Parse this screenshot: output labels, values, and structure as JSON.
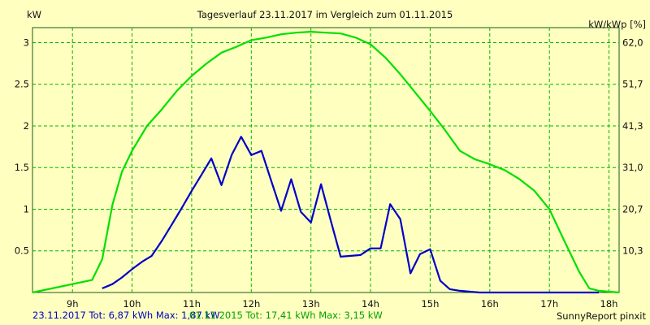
{
  "chart_data": {
    "type": "line",
    "title": "Tagesverlauf 23.11.2017 im Vergleich zum 01.11.2015",
    "ylabel_left": "kW",
    "ylabel_right": "kW/kWp [%]",
    "xlim": [
      8.33,
      18.17
    ],
    "ylim": [
      0,
      3.18
    ],
    "grid": true,
    "x_ticks": [
      {
        "x": 9,
        "label": "9h"
      },
      {
        "x": 10,
        "label": "10h"
      },
      {
        "x": 11,
        "label": "11h"
      },
      {
        "x": 12,
        "label": "12h"
      },
      {
        "x": 13,
        "label": "13h"
      },
      {
        "x": 14,
        "label": "14h"
      },
      {
        "x": 15,
        "label": "15h"
      },
      {
        "x": 16,
        "label": "16h"
      },
      {
        "x": 17,
        "label": "17h"
      },
      {
        "x": 18,
        "label": "18h"
      }
    ],
    "y_ticks_left": [
      {
        "v": 0.5,
        "label": "0.5"
      },
      {
        "v": 1,
        "label": "1"
      },
      {
        "v": 1.5,
        "label": "1.5"
      },
      {
        "v": 2,
        "label": "2"
      },
      {
        "v": 2.5,
        "label": "2.5"
      },
      {
        "v": 3,
        "label": "3"
      }
    ],
    "y_ticks_right": [
      {
        "v": 0.5,
        "label": "10,3"
      },
      {
        "v": 1,
        "label": "20,7"
      },
      {
        "v": 1.5,
        "label": "31,0"
      },
      {
        "v": 2,
        "label": "41,3"
      },
      {
        "v": 2.5,
        "label": "51,7"
      },
      {
        "v": 3,
        "label": "62,0"
      }
    ],
    "series": [
      {
        "name": "01.11.2015",
        "color": "#00e000",
        "x": [
          8.33,
          9.33,
          9.5,
          9.67,
          9.83,
          10.0,
          10.25,
          10.5,
          10.75,
          11.0,
          11.25,
          11.5,
          11.75,
          12.0,
          12.25,
          12.5,
          12.75,
          13.0,
          13.25,
          13.5,
          13.75,
          14.0,
          14.25,
          14.5,
          14.75,
          15.0,
          15.25,
          15.5,
          15.75,
          16.0,
          16.25,
          16.5,
          16.75,
          17.0,
          17.25,
          17.5,
          17.67,
          17.83,
          18.17
        ],
        "values": [
          0.0,
          0.15,
          0.4,
          1.05,
          1.45,
          1.7,
          2.0,
          2.2,
          2.42,
          2.6,
          2.75,
          2.88,
          2.95,
          3.03,
          3.06,
          3.1,
          3.12,
          3.13,
          3.12,
          3.11,
          3.06,
          2.98,
          2.82,
          2.62,
          2.4,
          2.18,
          1.95,
          1.7,
          1.6,
          1.54,
          1.47,
          1.36,
          1.22,
          1.0,
          0.62,
          0.25,
          0.05,
          0.02,
          0.0
        ]
      },
      {
        "name": "23.11.2017",
        "color": "#0000c8",
        "x": [
          9.5,
          9.67,
          9.83,
          10.0,
          10.17,
          10.33,
          10.5,
          10.67,
          10.83,
          11.0,
          11.17,
          11.33,
          11.5,
          11.67,
          11.83,
          12.0,
          12.17,
          12.33,
          12.5,
          12.67,
          12.83,
          13.0,
          13.17,
          13.33,
          13.5,
          13.67,
          13.83,
          14.0,
          14.17,
          14.33,
          14.5,
          14.67,
          14.83,
          15.0,
          15.17,
          15.33,
          15.5,
          15.67,
          15.83,
          16.0,
          16.17,
          16.33,
          16.5,
          16.67,
          16.83,
          17.0,
          17.17,
          17.33,
          17.5,
          17.67,
          17.83
        ],
        "values": [
          0.05,
          0.1,
          0.18,
          0.28,
          0.37,
          0.44,
          0.62,
          0.82,
          1.01,
          1.22,
          1.42,
          1.61,
          1.29,
          1.65,
          1.87,
          1.65,
          1.7,
          1.35,
          0.98,
          1.36,
          0.97,
          0.84,
          1.3,
          0.87,
          0.43,
          0.44,
          0.45,
          0.53,
          0.53,
          1.06,
          0.88,
          0.23,
          0.46,
          0.52,
          0.14,
          0.04,
          0.02,
          0.01,
          0.0,
          0.0,
          0.0,
          0.0,
          0.0,
          0.0,
          0.0,
          0.0,
          0.0,
          0.0,
          0.0,
          0.0,
          0.0
        ]
      }
    ]
  },
  "footer": {
    "blue": "23.11.2017 Tot: 6,87 kWh Max: 1,87 kW",
    "green": "01.11.2015 Tot: 17,41 kWh Max: 3,15 kW",
    "credit": "SunnyReport pinxit"
  }
}
